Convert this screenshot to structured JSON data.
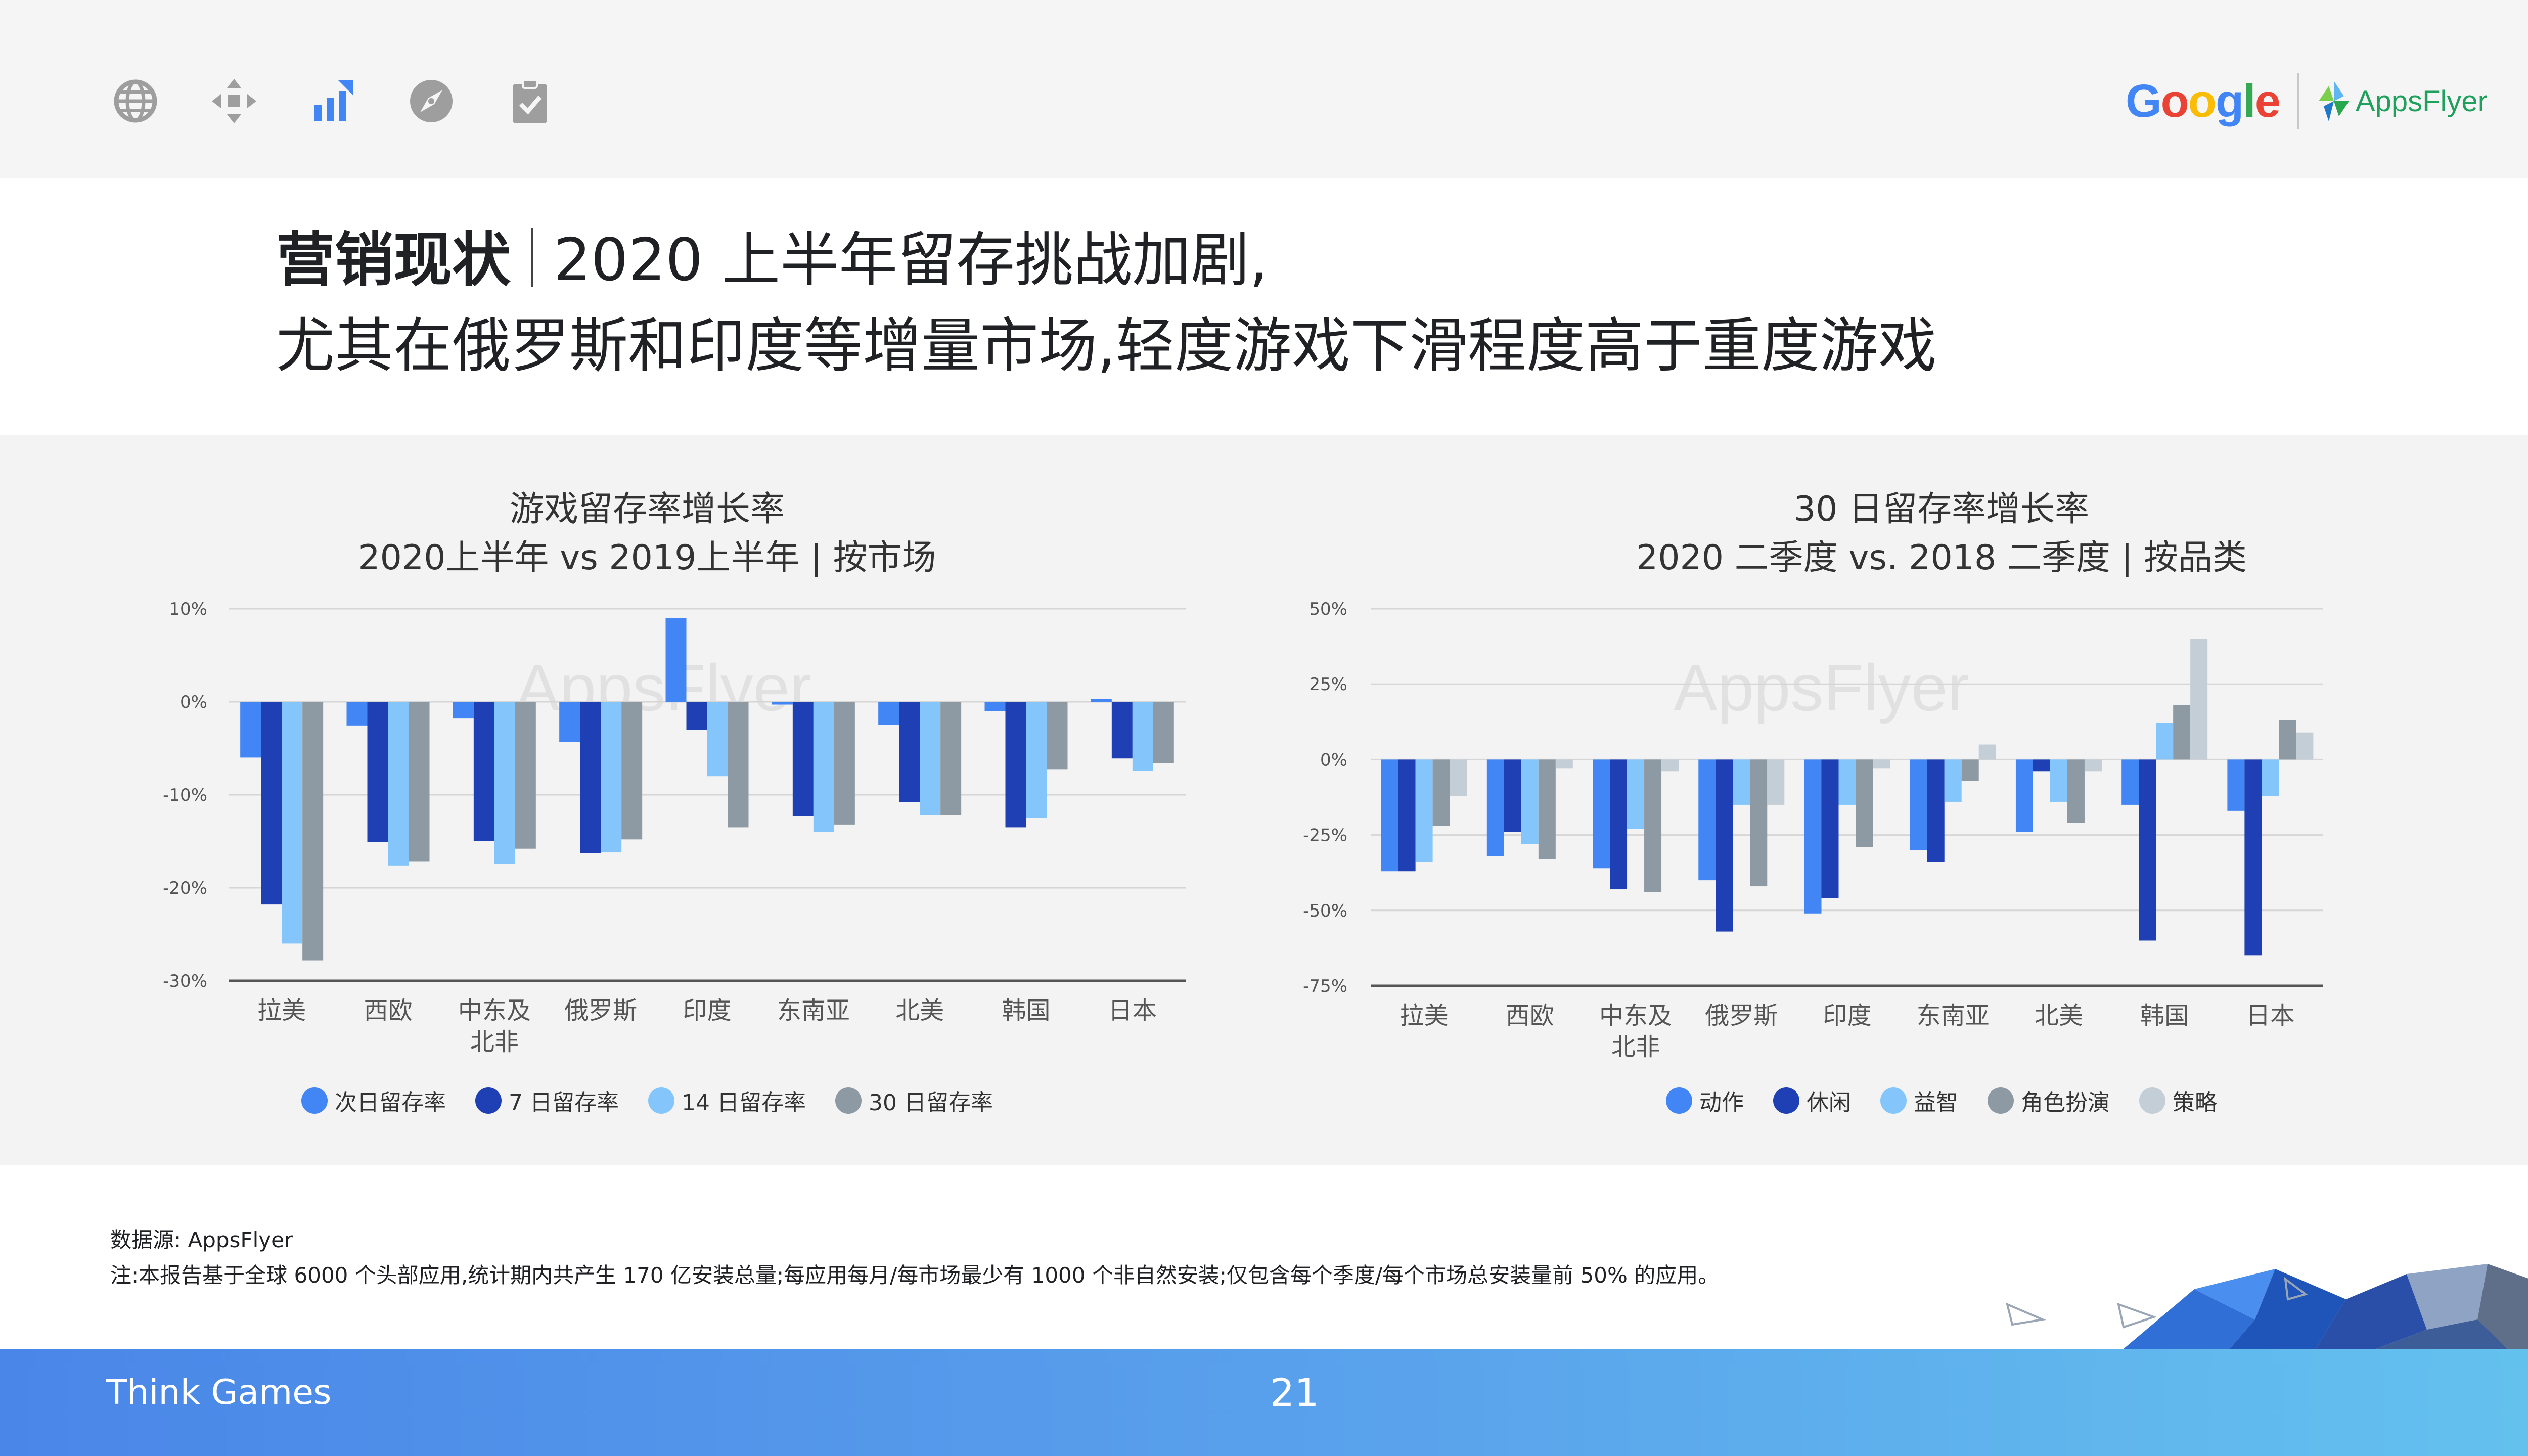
{
  "header": {
    "nav_icons": [
      "globe-icon",
      "move-arrows-icon",
      "bar-growth-icon",
      "compass-icon",
      "clipboard-check-icon"
    ],
    "logos": {
      "google": "Google",
      "appsflyer": "AppsFlyer"
    }
  },
  "title": {
    "bold": "营销现状",
    "line1": "2020 上半年留存挑战加剧,",
    "line2": "尤其在俄罗斯和印度等增量市场,轻度游戏下滑程度高于重度游戏"
  },
  "watermark": "AppsFlyer",
  "colors": {
    "c1": "#4285f4",
    "c2": "#1f3fb4",
    "c3": "#84c6fb",
    "c4": "#8d9aa3",
    "c5": "#c4ced6"
  },
  "chart_data": [
    {
      "type": "bar",
      "title_line1": "游戏留存率增长率",
      "title_line2": "2020上半年 vs 2019上半年 | 按市场",
      "categories": [
        "拉美",
        "西欧",
        "中东及北非",
        "俄罗斯",
        "印度",
        "东南亚",
        "北美",
        "韩国",
        "日本"
      ],
      "category_lines": [
        [
          "拉美"
        ],
        [
          "西欧"
        ],
        [
          "中东及",
          "北非"
        ],
        [
          "俄罗斯"
        ],
        [
          "印度"
        ],
        [
          "东南亚"
        ],
        [
          "北美"
        ],
        [
          "韩国"
        ],
        [
          "日本"
        ]
      ],
      "ylim": [
        -30,
        10
      ],
      "yticks": [
        10,
        0,
        -10,
        -20,
        -30
      ],
      "ytick_labels": [
        "10%",
        "0%",
        "-10%",
        "-20%",
        "-30%"
      ],
      "legend_position": "bottom",
      "series": [
        {
          "name": "次日留存率",
          "values": [
            -6,
            -2.6,
            -1.8,
            -4.3,
            9,
            -0.3,
            -2.5,
            -1,
            0.3
          ]
        },
        {
          "name": "7 日留存率",
          "values": [
            -21.8,
            -15.1,
            -15,
            -16.3,
            -3,
            -12.3,
            -10.8,
            -13.5,
            -6.1
          ]
        },
        {
          "name": "14 日留存率",
          "values": [
            -26,
            -17.6,
            -17.5,
            -16.2,
            -8,
            -14,
            -12.2,
            -12.5,
            -7.5
          ]
        },
        {
          "name": "30 日留存率",
          "values": [
            -27.8,
            -17.2,
            -15.8,
            -14.8,
            -13.5,
            -13.2,
            -12.2,
            -7.3,
            -6.6
          ]
        }
      ]
    },
    {
      "type": "bar",
      "title_line1": "30 日留存率增长率",
      "title_line2": "2020 二季度 vs. 2018 二季度 | 按品类",
      "categories": [
        "拉美",
        "西欧",
        "中东及北非",
        "俄罗斯",
        "印度",
        "东南亚",
        "北美",
        "韩国",
        "日本"
      ],
      "category_lines": [
        [
          "拉美"
        ],
        [
          "西欧"
        ],
        [
          "中东及",
          "北非"
        ],
        [
          "俄罗斯"
        ],
        [
          "印度"
        ],
        [
          "东南亚"
        ],
        [
          "北美"
        ],
        [
          "韩国"
        ],
        [
          "日本"
        ]
      ],
      "ylim": [
        -75,
        50
      ],
      "yticks": [
        50,
        25,
        0,
        -25,
        -50,
        -75
      ],
      "ytick_labels": [
        "50%",
        "25%",
        "0%",
        "-25%",
        "-50%",
        "-75%"
      ],
      "legend_position": "bottom",
      "series": [
        {
          "name": "动作",
          "values": [
            -37,
            -32,
            -36,
            -40,
            -51,
            -30,
            -24,
            -15,
            -17
          ]
        },
        {
          "name": "休闲",
          "values": [
            -37,
            -24,
            -43,
            -57,
            -46,
            -34,
            -4,
            -60,
            -65
          ]
        },
        {
          "name": "益智",
          "values": [
            -34,
            -28,
            -23,
            -15,
            -15,
            -14,
            -14,
            12,
            -12
          ]
        },
        {
          "name": "角色扮演",
          "values": [
            -22,
            -33,
            -44,
            -42,
            -29,
            -7,
            -21,
            18,
            13
          ]
        },
        {
          "name": "策略",
          "values": [
            -12,
            -3,
            -4,
            -15,
            -3,
            5,
            -4,
            40,
            9
          ]
        }
      ]
    }
  ],
  "source": {
    "line1": "数据源: AppsFlyer",
    "line2": "注:本报告基于全球 6000 个头部应用,统计期内共产生 170 亿安装总量;每应用每月/每市场最少有 1000 个非自然安装;仅包含每个季度/每个市场总安装量前 50% 的应用。"
  },
  "footer": {
    "left": "Think Games",
    "page": "21"
  }
}
